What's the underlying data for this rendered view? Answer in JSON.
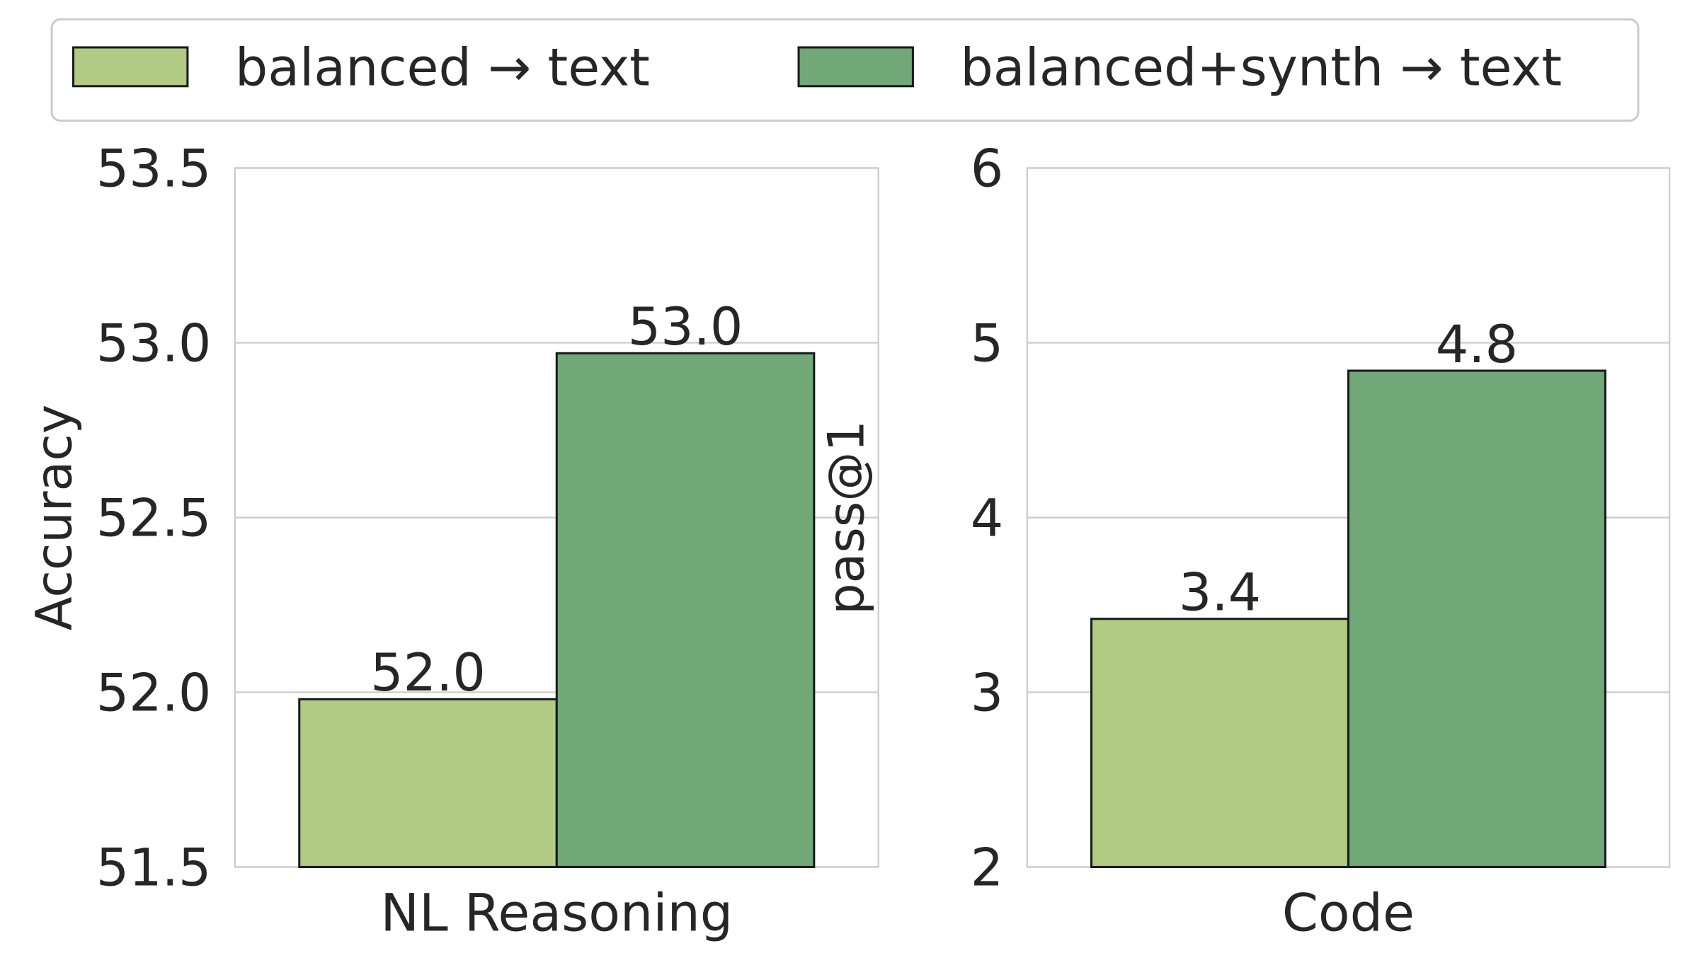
{
  "chart_data": [
    {
      "type": "bar",
      "categories": [
        "NL Reasoning"
      ],
      "ylabel": "Accuracy",
      "series": [
        {
          "name": "balanced → text",
          "color": "#b1cb84",
          "values": [
            51.98
          ],
          "value_labels": [
            "52.0"
          ]
        },
        {
          "name": "balanced+synth → text",
          "color": "#71a878",
          "values": [
            52.97
          ],
          "value_labels": [
            "53.0"
          ]
        }
      ],
      "ylim": [
        51.5,
        53.5
      ],
      "yticks": [
        51.5,
        {
          "value": 52,
          "label": "52.0"
        },
        52.5,
        {
          "value": 53,
          "label": "53.0"
        },
        53.5
      ],
      "grid": true,
      "legend": "top"
    },
    {
      "type": "bar",
      "categories": [
        "Code"
      ],
      "ylabel": "pass@1",
      "series": [
        {
          "name": "balanced → text",
          "color": "#b1cb84",
          "values": [
            3.42
          ],
          "value_labels": [
            "3.4"
          ]
        },
        {
          "name": "balanced+synth → text",
          "color": "#71a878",
          "values": [
            4.84
          ],
          "value_labels": [
            "4.8"
          ]
        }
      ],
      "ylim": [
        2,
        6
      ],
      "yticks": [
        2,
        3,
        4,
        5,
        6
      ],
      "grid": true
    }
  ]
}
